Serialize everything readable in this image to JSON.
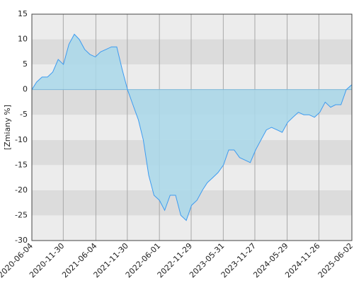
{
  "chart_data": {
    "type": "area",
    "y_label": "[Zmiany %]",
    "x": [
      "2020-06-04",
      "2020-07-01",
      "2020-08-01",
      "2020-09-01",
      "2020-10-01",
      "2020-11-01",
      "2020-12-01",
      "2021-01-01",
      "2021-02-01",
      "2021-03-01",
      "2021-04-01",
      "2021-05-01",
      "2021-06-01",
      "2021-07-01",
      "2021-08-01",
      "2021-09-01",
      "2021-10-01",
      "2021-11-01",
      "2021-12-01",
      "2022-01-01",
      "2022-02-01",
      "2022-03-01",
      "2022-04-01",
      "2022-05-01",
      "2022-06-01",
      "2022-07-01",
      "2022-08-01",
      "2022-09-01",
      "2022-10-01",
      "2022-11-01",
      "2022-12-01",
      "2023-01-01",
      "2023-02-01",
      "2023-03-01",
      "2023-04-01",
      "2023-05-01",
      "2023-06-01",
      "2023-07-01",
      "2023-08-01",
      "2023-09-01",
      "2023-10-01",
      "2023-11-01",
      "2023-12-01",
      "2024-01-01",
      "2024-02-01",
      "2024-03-01",
      "2024-04-01",
      "2024-05-01",
      "2024-06-01",
      "2024-07-01",
      "2024-08-01",
      "2024-09-01",
      "2024-10-01",
      "2024-11-01",
      "2024-12-01",
      "2025-01-01",
      "2025-02-01",
      "2025-03-01",
      "2025-04-01",
      "2025-05-01",
      "2025-06-02"
    ],
    "series": [
      {
        "color": "#3d9bf0",
        "fill": "#a9d8ea",
        "values": [
          0,
          1.5,
          2.5,
          2.5,
          3.5,
          6,
          5,
          9,
          11,
          10,
          8,
          7,
          6.5,
          7.5,
          8,
          8.5,
          8.5,
          4,
          0,
          -3,
          -6,
          -10,
          -17,
          -21,
          -22,
          -24,
          -21,
          -21,
          -25,
          -26,
          -23,
          -22,
          -20,
          -18.5,
          -17.5,
          -16.5,
          -15,
          -12,
          -12,
          -13.5,
          -14,
          -14.5,
          -12,
          -10,
          -8,
          -7.5,
          -8,
          -8.5,
          -6.5,
          -5.5,
          -4.5,
          -5,
          -5,
          -5.5,
          -4.5,
          -2.5,
          -3.5,
          -3,
          -3,
          0,
          1
        ]
      }
    ],
    "xlim": [
      "2020-06-04",
      "2025-06-02"
    ],
    "xticks": [
      "2020-06-04",
      "2020-11-30",
      "2021-06-04",
      "2021-11-30",
      "2022-06-01",
      "2022-11-29",
      "2023-05-31",
      "2023-11-27",
      "2024-05-29",
      "2024-11-26",
      "2025-06-02"
    ],
    "ylim": [
      -30,
      15
    ],
    "yticks": [
      -30,
      -25,
      -20,
      -15,
      -10,
      -5,
      0,
      5,
      10,
      15
    ],
    "grid": true
  }
}
